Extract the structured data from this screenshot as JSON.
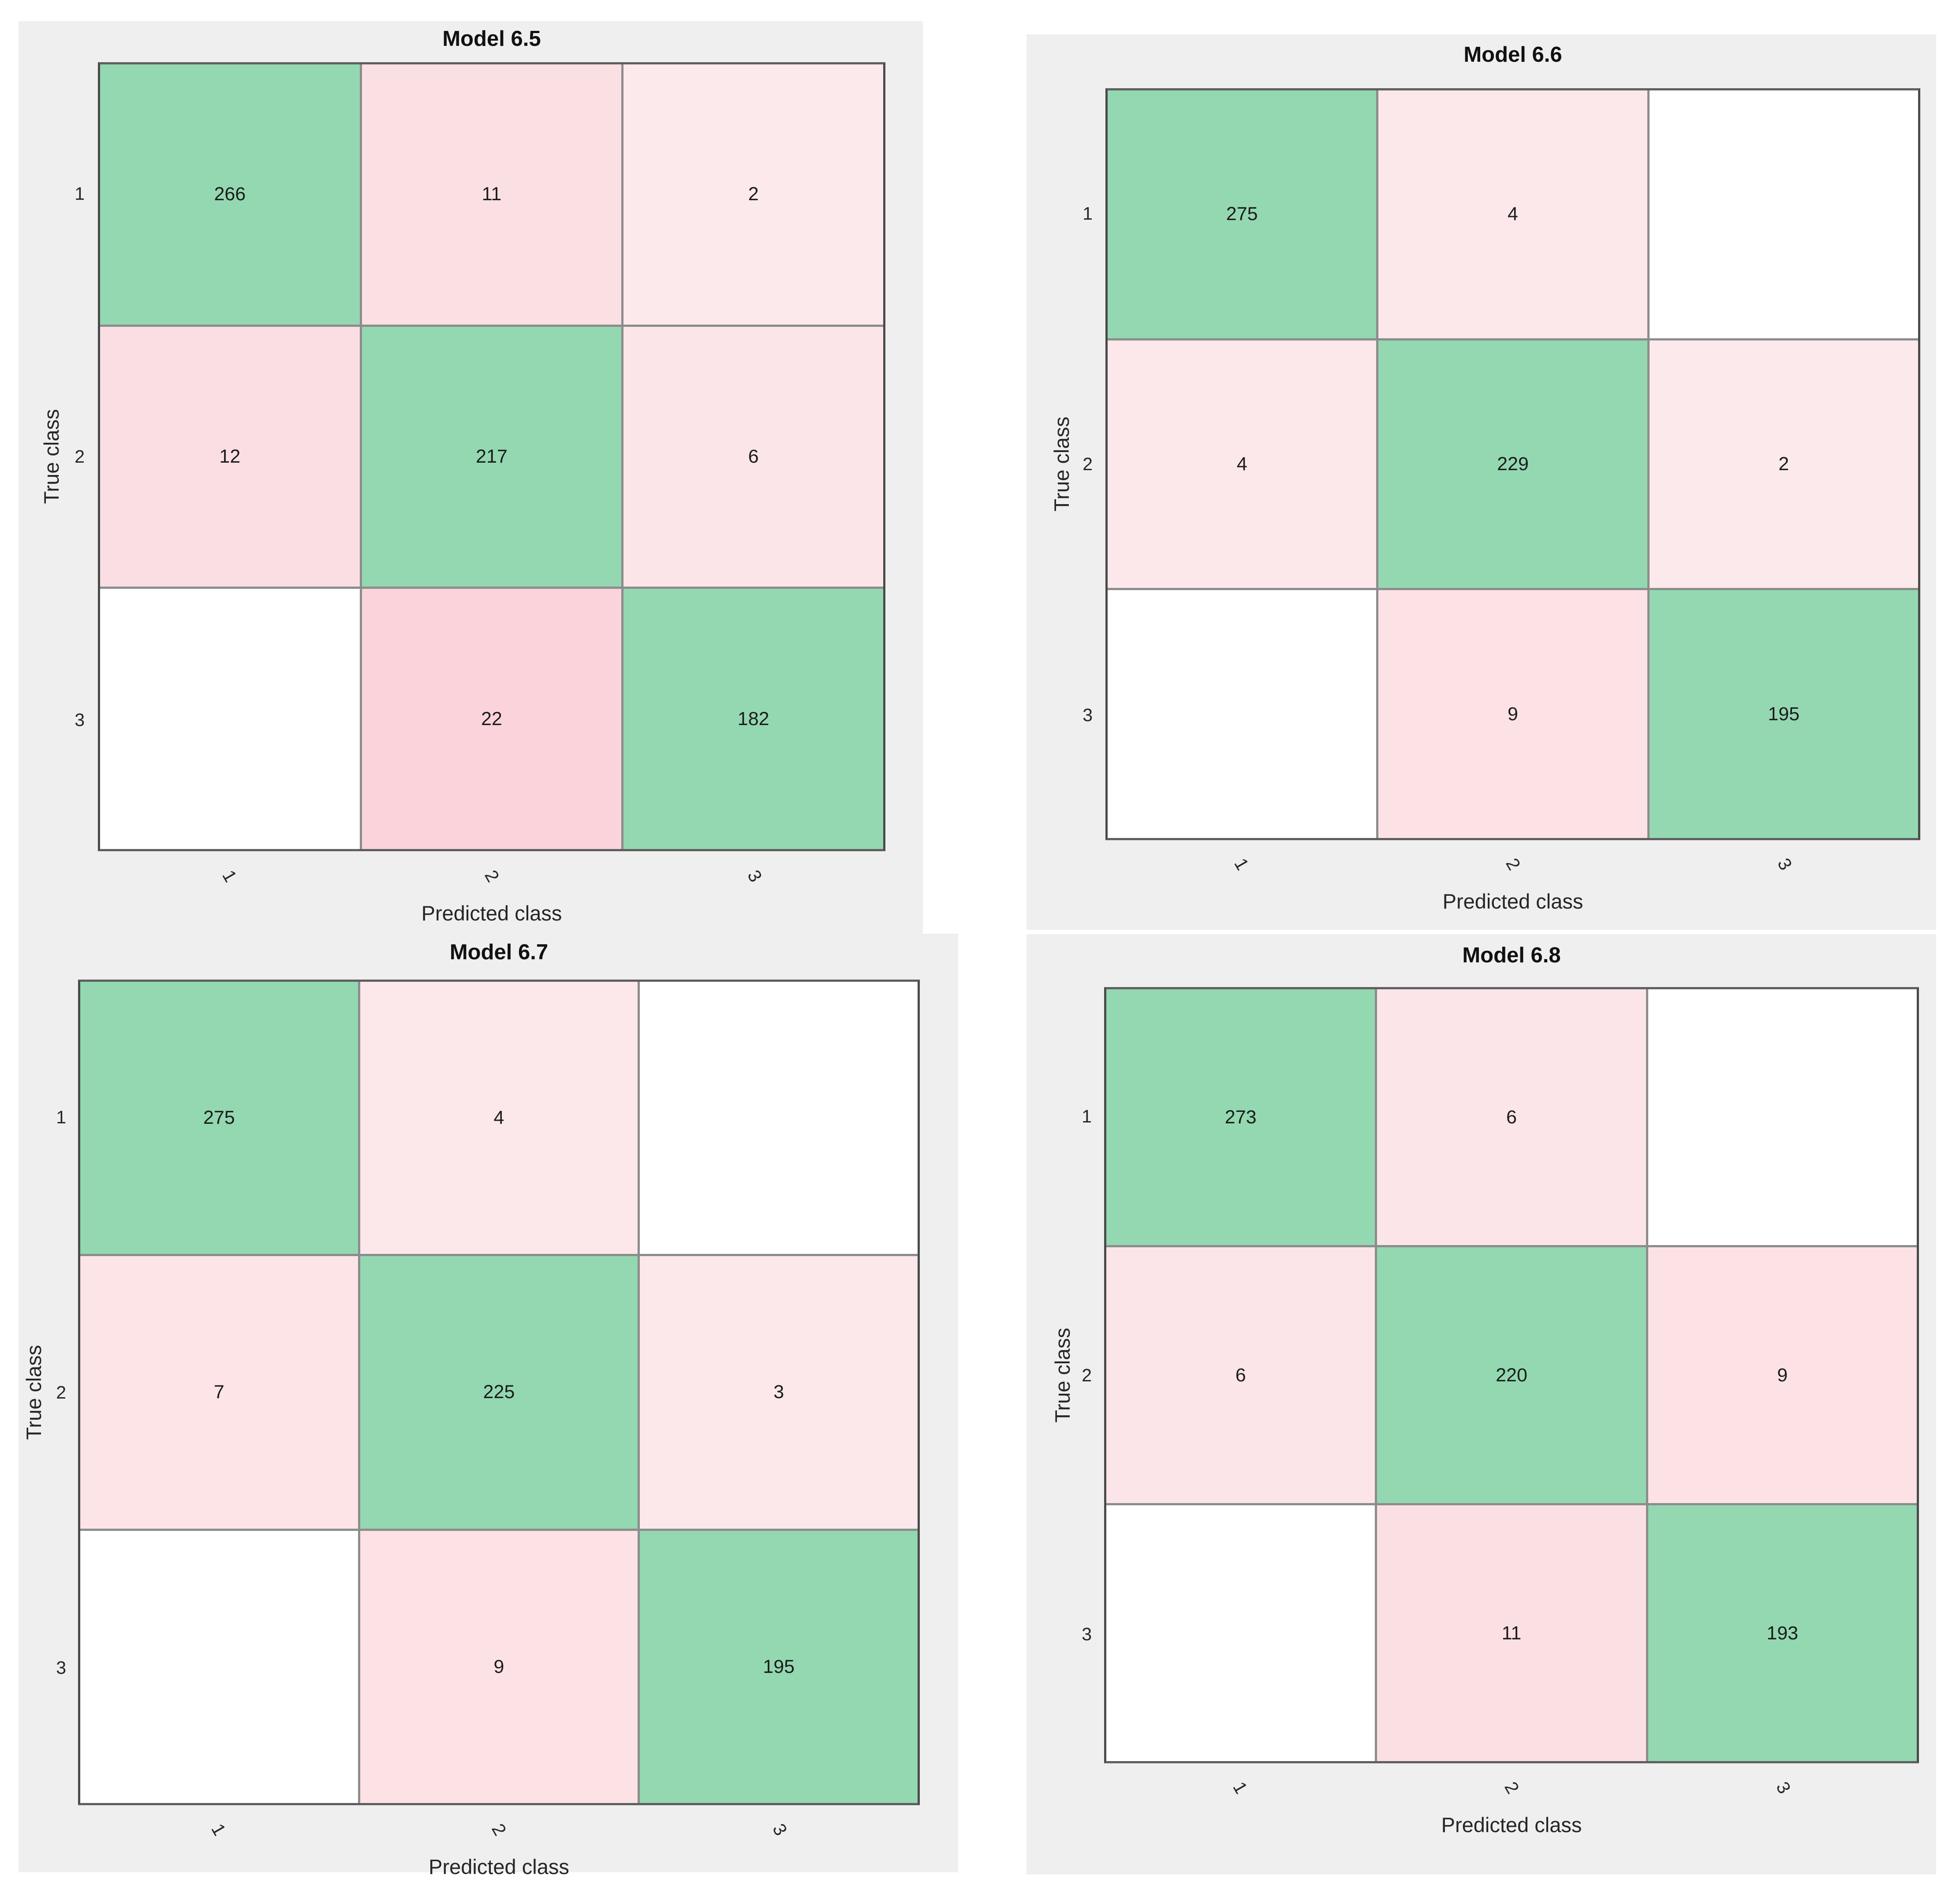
{
  "colors": {
    "panel_bg": "#efefef",
    "diagonal": "#93d8b1",
    "offdiag_base_rgb": [
      240,
      128,
      144
    ],
    "zero_cell": "#ffffff",
    "grid_line": "#8c8c8c",
    "border": "#4a4a4a"
  },
  "chart_data": [
    {
      "type": "heatmap",
      "title": "Model 6.5",
      "xlabel": "Predicted class",
      "ylabel": "True class",
      "classes": [
        "1",
        "2",
        "3"
      ],
      "matrix": [
        [
          266,
          11,
          2
        ],
        [
          12,
          217,
          6
        ],
        [
          0,
          22,
          182
        ]
      ],
      "labels": [
        [
          "266",
          "11",
          "2"
        ],
        [
          "12",
          "217",
          "6"
        ],
        [
          "",
          "22",
          "182"
        ]
      ],
      "legend_position": "none",
      "grid": true
    },
    {
      "type": "heatmap",
      "title": "Model 6.6",
      "xlabel": "Predicted class",
      "ylabel": "True class",
      "classes": [
        "1",
        "2",
        "3"
      ],
      "matrix": [
        [
          275,
          4,
          0
        ],
        [
          4,
          229,
          2
        ],
        [
          0,
          9,
          195
        ]
      ],
      "labels": [
        [
          "275",
          "4",
          ""
        ],
        [
          "4",
          "229",
          "2"
        ],
        [
          "",
          "9",
          "195"
        ]
      ],
      "legend_position": "none",
      "grid": true
    },
    {
      "type": "heatmap",
      "title": "Model 6.7",
      "xlabel": "Predicted class",
      "ylabel": "True class",
      "classes": [
        "1",
        "2",
        "3"
      ],
      "matrix": [
        [
          275,
          4,
          0
        ],
        [
          7,
          225,
          3
        ],
        [
          0,
          9,
          195
        ]
      ],
      "labels": [
        [
          "275",
          "4",
          ""
        ],
        [
          "7",
          "225",
          "3"
        ],
        [
          "",
          "9",
          "195"
        ]
      ],
      "legend_position": "none",
      "grid": true
    },
    {
      "type": "heatmap",
      "title": "Model 6.8",
      "xlabel": "Predicted class",
      "ylabel": "True class",
      "classes": [
        "1",
        "2",
        "3"
      ],
      "matrix": [
        [
          273,
          6,
          0
        ],
        [
          6,
          220,
          9
        ],
        [
          0,
          11,
          193
        ]
      ],
      "labels": [
        [
          "273",
          "6",
          ""
        ],
        [
          "6",
          "220",
          "9"
        ],
        [
          "",
          "11",
          "193"
        ]
      ],
      "legend_position": "none",
      "grid": true
    }
  ]
}
